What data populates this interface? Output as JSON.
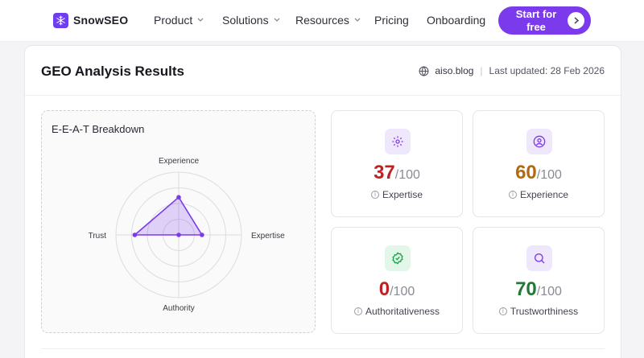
{
  "nav": {
    "brand": "SnowSEO",
    "items": [
      {
        "label": "Product",
        "dropdown": true
      },
      {
        "label": "Solutions",
        "dropdown": true
      },
      {
        "label": "Resources",
        "dropdown": true
      },
      {
        "label": "Pricing",
        "dropdown": false
      },
      {
        "label": "Onboarding",
        "dropdown": false
      }
    ],
    "cta": "Start for free",
    "colors": {
      "accent": "#7c3aed"
    }
  },
  "results": {
    "title": "GEO Analysis Results",
    "domain": "aiso.blog",
    "last_updated": "Last updated: 28 Feb 2026"
  },
  "eeat": {
    "title": "E-E-A-T Breakdown",
    "axes": [
      "Experience",
      "Expertise",
      "Authority",
      "Trust"
    ],
    "values": [
      60,
      37,
      0,
      70
    ],
    "max": 100
  },
  "scores": [
    {
      "value": "37",
      "max": "/100",
      "label": "Expertise",
      "icon": "gear-icon",
      "color": "#c0201f",
      "icon_bg": "#efe8fd",
      "icon_color": "#7c3aed"
    },
    {
      "value": "60",
      "max": "/100",
      "label": "Experience",
      "icon": "user-icon",
      "color": "#b36a0e",
      "icon_bg": "#efe8fd",
      "icon_color": "#7c3aed"
    },
    {
      "value": "0",
      "max": "/100",
      "label": "Authoritativeness",
      "icon": "badge-check-icon",
      "color": "#c0201f",
      "icon_bg": "#e2f7e8",
      "icon_color": "#16a34a"
    },
    {
      "value": "70",
      "max": "/100",
      "label": "Trustworthiness",
      "icon": "search-icon",
      "color": "#1f7a35",
      "icon_bg": "#efe8fd",
      "icon_color": "#7c3aed"
    }
  ]
}
